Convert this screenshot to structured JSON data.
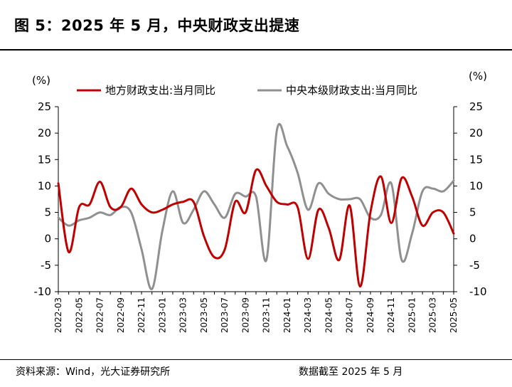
{
  "header": {
    "title": "图 5：2025 年 5 月，中央财政支出提速"
  },
  "footer": {
    "source": "资料来源：Wind，光大证券研究所",
    "cutoff": "数据截至 2025 年 5 月"
  },
  "chart_data": {
    "type": "line",
    "x": [
      "2022-03",
      "2022-04",
      "2022-05",
      "2022-06",
      "2022-07",
      "2022-08",
      "2022-09",
      "2022-10",
      "2022-11",
      "2022-12",
      "2023-01",
      "2023-02",
      "2023-03",
      "2023-04",
      "2023-05",
      "2023-06",
      "2023-07",
      "2023-08",
      "2023-09",
      "2023-10",
      "2023-11",
      "2023-12",
      "2024-01",
      "2024-02",
      "2024-03",
      "2024-04",
      "2024-05",
      "2024-06",
      "2024-07",
      "2024-08",
      "2024-09",
      "2024-10",
      "2024-11",
      "2024-12",
      "2025-01",
      "2025-02",
      "2025-03",
      "2025-04",
      "2025-05"
    ],
    "xticks": [
      "2022-03",
      "2022-05",
      "2022-07",
      "2022-09",
      "2022-11",
      "2023-01",
      "2023-03",
      "2023-05",
      "2023-07",
      "2023-09",
      "2023-11",
      "2024-01",
      "2024-03",
      "2024-05",
      "2024-07",
      "2024-09",
      "2024-11",
      "2025-01",
      "2025-03",
      "2025-05"
    ],
    "series": [
      {
        "name": "地方财政支出:当月同比",
        "color": "#C00000",
        "values": [
          10.5,
          -2.5,
          6.0,
          6.5,
          10.8,
          6.0,
          6.0,
          9.5,
          6.5,
          5.0,
          5.5,
          6.5,
          7.0,
          7.0,
          0.5,
          -3.5,
          -2.0,
          7.0,
          5.0,
          13.0,
          10.0,
          7.0,
          6.5,
          6.0,
          -3.8,
          5.5,
          2.0,
          -4.0,
          6.3,
          -9.0,
          5.0,
          11.8,
          3.0,
          11.5,
          8.0,
          2.5,
          5.0,
          5.0,
          1.0
        ]
      },
      {
        "name": "中央本级财政支出:当月同比",
        "color": "#909090",
        "values": [
          4.0,
          2.5,
          3.5,
          4.0,
          5.0,
          4.5,
          6.0,
          5.0,
          -2.0,
          -9.5,
          1.5,
          9.0,
          3.0,
          5.5,
          9.0,
          6.5,
          4.0,
          8.5,
          8.0,
          8.0,
          -4.0,
          20.5,
          17.5,
          12.5,
          5.5,
          10.5,
          8.5,
          7.5,
          7.5,
          7.5,
          4.0,
          4.5,
          10.5,
          -4.0,
          1.0,
          9.0,
          9.5,
          9.0,
          11.0
        ]
      }
    ],
    "y_left": {
      "label": "(%)",
      "range": [
        -10,
        25
      ],
      "ticks": [
        25,
        20,
        15,
        10,
        5,
        0,
        -5,
        -10
      ]
    },
    "y_right": {
      "label": "(%)",
      "range": [
        -10,
        25
      ],
      "ticks": [
        25,
        20,
        15,
        10,
        5,
        0,
        -5,
        -10
      ]
    },
    "grid": false,
    "legend": "top"
  }
}
